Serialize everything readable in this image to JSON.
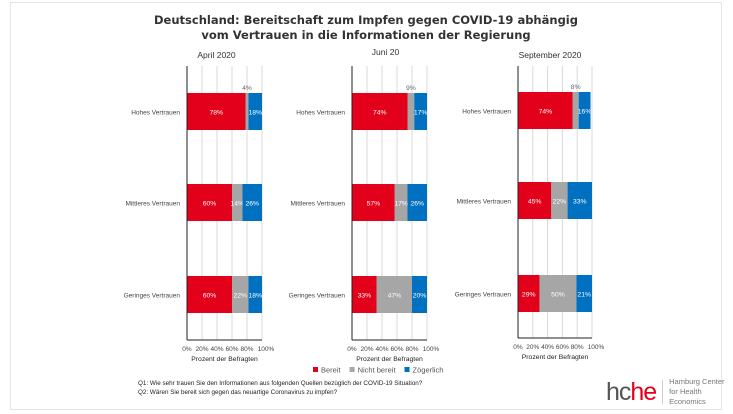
{
  "chart_data": {
    "type": "bar",
    "orientation": "horizontal-stacked-100",
    "title": "Deutschland: Bereitschaft zum Impfen gegen COVID-19 abhängig vom Vertrauen in die Informationen der Regierung",
    "title_lines": [
      "Deutschland: Bereitschaft zum Impfen gegen COVID-19 abhängig",
      "vom Vertrauen in die Informationen der Regierung"
    ],
    "categories": [
      "Hohes Vertrauen",
      "Mittleres Vertrauen",
      "Geringes Vertrauen"
    ],
    "xlabel": "Prozent der Befragten",
    "xlim": [
      0,
      100
    ],
    "xticks": [
      "0%",
      "20%",
      "40%",
      "60%",
      "80%",
      "100%"
    ],
    "grid": true,
    "legend_placement": "bottom",
    "series_names": [
      "Bereit",
      "Nicht bereit",
      "Zögerlich"
    ],
    "colors": [
      "#e2001a",
      "#a6a6a6",
      "#0070c0"
    ],
    "panels": [
      {
        "title": "April 2020",
        "series": [
          {
            "name": "Bereit",
            "values": [
              78,
              60,
              60
            ]
          },
          {
            "name": "Nicht bereit",
            "values": [
              4,
              14,
              22
            ]
          },
          {
            "name": "Zögerlich",
            "values": [
              18,
              26,
              18
            ]
          }
        ]
      },
      {
        "title": "Juni 20",
        "series": [
          {
            "name": "Bereit",
            "values": [
              74,
              57,
              33
            ]
          },
          {
            "name": "Nicht bereit",
            "values": [
              9,
              17,
              47
            ]
          },
          {
            "name": "Zögerlich",
            "values": [
              17,
              26,
              20
            ]
          }
        ]
      },
      {
        "title": "September 2020",
        "series": [
          {
            "name": "Bereit",
            "values": [
              74,
              45,
              29
            ]
          },
          {
            "name": "Nicht bereit",
            "values": [
              8,
              22,
              50
            ]
          },
          {
            "name": "Zögerlich",
            "values": [
              16,
              33,
              21
            ]
          }
        ]
      }
    ]
  },
  "footnotes": {
    "q1": "Q1: Wie sehr trauen Sie den Informationen aus folgenden Quellen bezüglich der COVID-19 Situation?",
    "q2": "Q2: Wären Sie bereit sich gegen das neuartige Coronavirus zu impfen?"
  },
  "logo": {
    "mark_h": "hc",
    "mark_e": "he",
    "line1": "Hamburg Center",
    "line2": "for Health Economics"
  }
}
